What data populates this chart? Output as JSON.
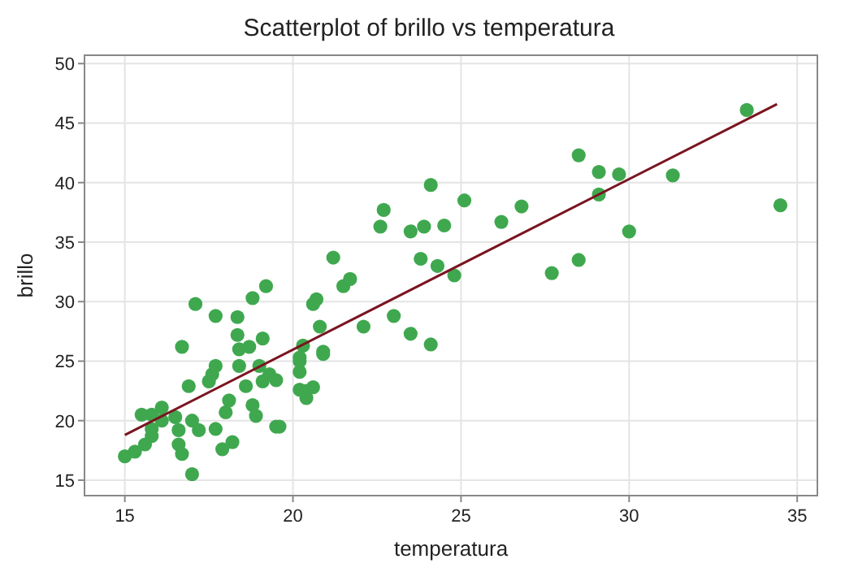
{
  "chart_data": {
    "type": "scatter",
    "title": "Scatterplot of brillo vs temperatura",
    "xlabel": "temperatura",
    "ylabel": "brillo",
    "xlim": [
      13.8,
      35.6
    ],
    "ylim": [
      13.7,
      50.7
    ],
    "xticks": [
      15,
      20,
      25,
      30,
      35
    ],
    "yticks": [
      15,
      20,
      25,
      30,
      35,
      40,
      45,
      50
    ],
    "grid": true,
    "marker": "circle",
    "series": [
      {
        "color": "#3fa84f",
        "x": [
          15.0,
          15.3,
          15.6,
          15.5,
          15.8,
          15.8,
          15.8,
          16.1,
          16.1,
          16.5,
          16.6,
          16.6,
          16.7,
          16.7,
          16.9,
          17.0,
          17.0,
          17.1,
          17.2,
          17.5,
          17.6,
          17.7,
          17.7,
          17.7,
          17.9,
          18.0,
          18.1,
          18.2,
          18.35,
          18.35,
          18.4,
          18.4,
          18.6,
          18.7,
          18.8,
          18.8,
          18.9,
          19.0,
          19.1,
          19.1,
          19.2,
          19.3,
          19.5,
          19.5,
          19.6,
          20.2,
          20.3,
          20.2,
          20.2,
          20.2,
          20.4,
          20.4,
          20.6,
          20.6,
          20.7,
          20.8,
          20.9,
          20.9,
          21.5,
          21.7,
          22.1,
          23.0,
          23.5,
          24.1,
          24.3,
          24.8,
          21.2,
          22.6,
          22.7,
          23.5,
          23.9,
          24.1,
          23.8,
          24.5,
          25.1,
          26.2,
          26.8,
          27.7,
          28.5,
          28.5,
          29.1,
          29.1,
          29.7,
          30.0,
          31.3,
          33.5,
          34.5
        ],
        "values": [
          17.0,
          17.4,
          18.0,
          20.5,
          20.5,
          19.3,
          18.7,
          21.1,
          20.0,
          20.3,
          18.0,
          19.2,
          17.2,
          26.2,
          22.9,
          15.5,
          20.0,
          29.8,
          19.2,
          23.3,
          23.9,
          24.6,
          28.8,
          19.3,
          17.6,
          20.7,
          21.7,
          18.2,
          28.7,
          27.2,
          26.0,
          24.6,
          22.9,
          26.2,
          21.3,
          30.3,
          20.4,
          24.6,
          23.3,
          26.9,
          31.3,
          23.9,
          23.4,
          19.5,
          19.5,
          22.6,
          26.3,
          25.3,
          24.1,
          25.0,
          21.9,
          22.5,
          22.8,
          29.8,
          30.2,
          27.9,
          25.6,
          25.8,
          31.3,
          31.9,
          27.9,
          28.8,
          27.3,
          26.4,
          33.0,
          32.2,
          33.7,
          36.3,
          37.7,
          35.9,
          36.3,
          39.8,
          33.6,
          36.4,
          38.5,
          36.7,
          38.0,
          32.4,
          33.5,
          42.3,
          40.9,
          39.0,
          40.7,
          35.9,
          40.6,
          46.1,
          38.1
        ]
      },
      {
        "type": "line",
        "color": "#7a1420",
        "marker": "none",
        "line_style": "solid",
        "x": [
          15,
          34.4
        ],
        "values": [
          18.8,
          46.6
        ]
      }
    ]
  }
}
